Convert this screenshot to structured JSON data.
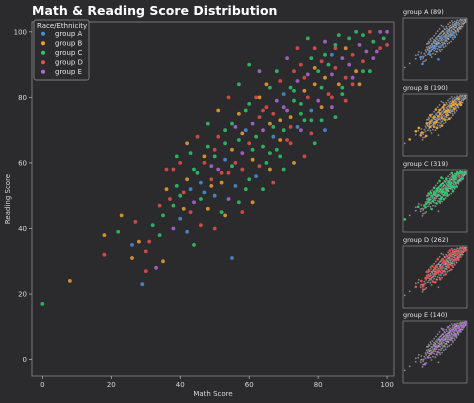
{
  "chart_data": {
    "type": "scatter",
    "title": "Math & Reading Score Distribution",
    "xlabel": "Math Score",
    "ylabel": "Reading Score",
    "xlim": [
      -3,
      102
    ],
    "ylim": [
      -5,
      103
    ],
    "xticks": [
      "0",
      "20",
      "40",
      "60",
      "80",
      "100"
    ],
    "yticks": [
      "0",
      "20",
      "40",
      "60",
      "80",
      "100"
    ],
    "grid": false,
    "legend_title": "Race/Ethnicity",
    "legend_position": "top-left",
    "series": [
      {
        "name": "group A",
        "color": "#4a8fd8",
        "count": 89
      },
      {
        "name": "group B",
        "color": "#f0a030",
        "count": 190
      },
      {
        "name": "group C",
        "color": "#2fc86a",
        "count": 319
      },
      {
        "name": "group D",
        "color": "#e8504a",
        "count": 262
      },
      {
        "name": "group E",
        "color": "#b068d8",
        "count": 140
      }
    ],
    "points": [
      [
        0,
        17,
        2
      ],
      [
        8,
        24,
        1
      ],
      [
        18,
        38,
        1
      ],
      [
        18,
        32,
        3
      ],
      [
        22,
        39,
        2
      ],
      [
        23,
        44,
        1
      ],
      [
        26,
        35,
        0
      ],
      [
        27,
        42,
        3
      ],
      [
        28,
        36,
        1
      ],
      [
        29,
        23,
        0
      ],
      [
        30,
        27,
        3
      ],
      [
        30,
        33,
        3
      ],
      [
        32,
        41,
        2
      ],
      [
        33,
        28,
        4
      ],
      [
        34,
        47,
        3
      ],
      [
        35,
        44,
        2
      ],
      [
        35,
        30,
        1
      ],
      [
        37,
        49,
        3
      ],
      [
        38,
        40,
        4
      ],
      [
        38,
        58,
        3
      ],
      [
        39,
        53,
        2
      ],
      [
        40,
        43,
        0
      ],
      [
        40,
        60,
        3
      ],
      [
        41,
        46,
        1
      ],
      [
        42,
        55,
        1
      ],
      [
        42,
        39,
        0
      ],
      [
        43,
        52,
        0
      ],
      [
        43,
        63,
        2
      ],
      [
        44,
        48,
        4
      ],
      [
        45,
        57,
        2
      ],
      [
        46,
        41,
        3
      ],
      [
        47,
        60,
        3
      ],
      [
        47,
        51,
        0
      ],
      [
        48,
        65,
        2
      ],
      [
        48,
        46,
        1
      ],
      [
        49,
        55,
        3
      ],
      [
        50,
        62,
        2
      ],
      [
        50,
        50,
        0
      ],
      [
        51,
        58,
        4
      ],
      [
        51,
        68,
        3
      ],
      [
        52,
        54,
        1
      ],
      [
        52,
        45,
        2
      ],
      [
        53,
        61,
        0
      ],
      [
        53,
        70,
        2
      ],
      [
        54,
        57,
        3
      ],
      [
        54,
        49,
        4
      ],
      [
        55,
        64,
        1
      ],
      [
        55,
        72,
        2
      ],
      [
        55,
        31,
        0
      ],
      [
        56,
        60,
        3
      ],
      [
        56,
        53,
        0
      ],
      [
        57,
        67,
        2
      ],
      [
        57,
        75,
        1
      ],
      [
        58,
        58,
        3
      ],
      [
        58,
        63,
        4
      ],
      [
        59,
        70,
        0
      ],
      [
        59,
        52,
        2
      ],
      [
        60,
        66,
        3
      ],
      [
        60,
        78,
        2
      ],
      [
        61,
        61,
        1
      ],
      [
        61,
        72,
        4
      ],
      [
        62,
        68,
        2
      ],
      [
        62,
        56,
        0
      ],
      [
        63,
        74,
        3
      ],
      [
        63,
        80,
        1
      ],
      [
        64,
        65,
        2
      ],
      [
        64,
        70,
        4
      ],
      [
        65,
        77,
        3
      ],
      [
        65,
        60,
        2
      ],
      [
        66,
        72,
        1
      ],
      [
        66,
        83,
        2
      ],
      [
        67,
        68,
        0
      ],
      [
        67,
        75,
        3
      ],
      [
        68,
        79,
        4
      ],
      [
        68,
        64,
        2
      ],
      [
        69,
        73,
        1
      ],
      [
        69,
        85,
        3
      ],
      [
        70,
        70,
        2
      ],
      [
        70,
        81,
        0
      ],
      [
        71,
        76,
        4
      ],
      [
        71,
        67,
        3
      ],
      [
        72,
        83,
        2
      ],
      [
        72,
        74,
        1
      ],
      [
        73,
        88,
        3
      ],
      [
        73,
        79,
        2
      ],
      [
        74,
        71,
        0
      ],
      [
        74,
        85,
        4
      ],
      [
        75,
        78,
        2
      ],
      [
        75,
        90,
        3
      ],
      [
        76,
        82,
        1
      ],
      [
        76,
        73,
        2
      ],
      [
        77,
        87,
        4
      ],
      [
        77,
        80,
        3
      ],
      [
        78,
        92,
        2
      ],
      [
        78,
        76,
        0
      ],
      [
        79,
        84,
        1
      ],
      [
        79,
        95,
        3
      ],
      [
        80,
        88,
        2
      ],
      [
        80,
        79,
        4
      ],
      [
        81,
        91,
        3
      ],
      [
        81,
        83,
        2
      ],
      [
        82,
        86,
        1
      ],
      [
        82,
        97,
        4
      ],
      [
        83,
        90,
        2
      ],
      [
        83,
        81,
        3
      ],
      [
        84,
        93,
        0
      ],
      [
        84,
        87,
        4
      ],
      [
        85,
        96,
        2
      ],
      [
        85,
        89,
        3
      ],
      [
        86,
        84,
        1
      ],
      [
        86,
        99,
        2
      ],
      [
        87,
        92,
        4
      ],
      [
        88,
        86,
        3
      ],
      [
        88,
        95,
        1
      ],
      [
        89,
        98,
        2
      ],
      [
        89,
        90,
        4
      ],
      [
        90,
        93,
        3
      ],
      [
        91,
        100,
        2
      ],
      [
        91,
        88,
        1
      ],
      [
        92,
        96,
        4
      ],
      [
        93,
        91,
        3
      ],
      [
        93,
        99,
        2
      ],
      [
        94,
        94,
        4
      ],
      [
        95,
        100,
        3
      ],
      [
        96,
        97,
        2
      ],
      [
        97,
        94,
        4
      ],
      [
        98,
        100,
        4
      ],
      [
        99,
        98,
        2
      ],
      [
        100,
        100,
        4
      ],
      [
        100,
        96,
        3
      ],
      [
        95,
        88,
        2
      ],
      [
        92,
        84,
        1
      ],
      [
        88,
        79,
        3
      ],
      [
        85,
        74,
        2
      ],
      [
        82,
        70,
        0
      ],
      [
        79,
        66,
        2
      ],
      [
        76,
        62,
        3
      ],
      [
        73,
        60,
        1
      ],
      [
        70,
        58,
        2
      ],
      [
        67,
        54,
        3
      ],
      [
        64,
        52,
        2
      ],
      [
        61,
        48,
        1
      ],
      [
        58,
        45,
        3
      ],
      [
        60,
        90,
        2
      ],
      [
        63,
        88,
        4
      ],
      [
        57,
        84,
        2
      ],
      [
        54,
        80,
        3
      ],
      [
        51,
        76,
        1
      ],
      [
        48,
        72,
        2
      ],
      [
        45,
        68,
        3
      ],
      [
        42,
        66,
        1
      ],
      [
        39,
        62,
        2
      ],
      [
        36,
        58,
        3
      ],
      [
        44,
        35,
        2
      ],
      [
        50,
        40,
        3
      ],
      [
        53,
        44,
        1
      ],
      [
        57,
        48,
        2
      ],
      [
        49,
        59,
        4
      ],
      [
        46,
        54,
        0
      ],
      [
        66,
        58,
        1
      ],
      [
        69,
        62,
        2
      ],
      [
        72,
        66,
        3
      ],
      [
        75,
        70,
        4
      ],
      [
        78,
        73,
        2
      ],
      [
        81,
        77,
        1
      ],
      [
        84,
        80,
        3
      ],
      [
        87,
        83,
        2
      ],
      [
        90,
        86,
        4
      ],
      [
        59,
        76,
        2
      ],
      [
        62,
        80,
        3
      ],
      [
        65,
        84,
        1
      ],
      [
        68,
        88,
        2
      ],
      [
        71,
        92,
        4
      ],
      [
        74,
        95,
        3
      ],
      [
        77,
        98,
        2
      ],
      [
        56,
        71,
        4
      ],
      [
        53,
        66,
        2
      ],
      [
        50,
        64,
        3
      ],
      [
        47,
        62,
        1
      ],
      [
        44,
        58,
        2
      ],
      [
        41,
        51,
        3
      ],
      [
        38,
        47,
        2
      ],
      [
        36,
        52,
        1
      ],
      [
        34,
        38,
        2
      ],
      [
        31,
        36,
        3
      ],
      [
        26,
        31,
        1
      ],
      [
        60,
        55,
        2
      ],
      [
        63,
        59,
        3
      ],
      [
        66,
        63,
        2
      ],
      [
        69,
        67,
        1
      ],
      [
        72,
        71,
        3
      ],
      [
        75,
        75,
        2
      ],
      [
        78,
        69,
        3
      ],
      [
        81,
        73,
        2
      ],
      [
        84,
        77,
        4
      ],
      [
        87,
        81,
        2
      ],
      [
        90,
        84,
        3
      ],
      [
        93,
        88,
        2
      ],
      [
        96,
        92,
        4
      ],
      [
        98,
        95,
        3
      ],
      [
        58,
        69,
        1
      ],
      [
        61,
        64,
        2
      ],
      [
        64,
        76,
        3
      ],
      [
        67,
        71,
        2
      ],
      [
        70,
        77,
        4
      ],
      [
        73,
        82,
        2
      ],
      [
        76,
        86,
        3
      ],
      [
        79,
        89,
        1
      ],
      [
        82,
        93,
        2
      ],
      [
        85,
        95,
        3
      ],
      [
        55,
        59,
        2
      ],
      [
        52,
        57,
        3
      ],
      [
        49,
        53,
        1
      ],
      [
        46,
        49,
        2
      ],
      [
        43,
        45,
        3
      ],
      [
        40,
        50,
        2
      ]
    ]
  }
}
